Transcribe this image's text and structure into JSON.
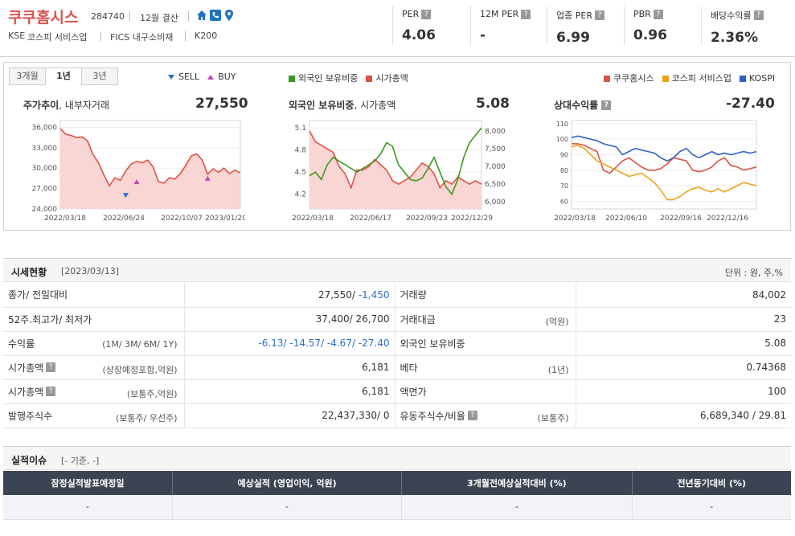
{
  "header": {
    "company_name": "쿠쿠홈시스",
    "code": "284740",
    "fiscal": "12월 결산",
    "icons": [
      "home-icon",
      "phone-icon",
      "location-pin-icon"
    ],
    "market": "KSE",
    "industry": "코스피 서비스업",
    "fics": "FICS 내구소비재",
    "index": "K200",
    "metrics": [
      {
        "label": "PER",
        "value": "4.06"
      },
      {
        "label": "12M PER",
        "value": "-"
      },
      {
        "label": "업종 PER",
        "value": "6.99"
      },
      {
        "label": "PBR",
        "value": "0.96"
      },
      {
        "label": "배당수익률",
        "value": "2.36%"
      }
    ]
  },
  "charts": {
    "tabs": [
      "3개월",
      "1년",
      "3년"
    ],
    "active_tab": "1년",
    "legend1": {
      "sell": "SELL",
      "buy": "BUY"
    },
    "legend2": [
      {
        "name": "외국인 보유비중",
        "color": "#3a9a1f"
      },
      {
        "name": "시가총액",
        "color": "#e05045"
      }
    ],
    "legend3": [
      {
        "name": "쿠쿠홈시스",
        "color": "#e05045"
      },
      {
        "name": "코스피 서비스업",
        "color": "#f0a21a"
      },
      {
        "name": "KOSPI",
        "color": "#2f63c2"
      }
    ],
    "panel1": {
      "title": "주가추이",
      "subtitle": ", 내부자거래",
      "value": "27,550",
      "yticks": [
        "36,000",
        "33,000",
        "30,000",
        "27,000",
        "24,000"
      ],
      "xticks": [
        "2022/03/18",
        "2022/06/24",
        "2022/10/07",
        "2023/01/20"
      ]
    },
    "panel2": {
      "title": "외국인 보유비중",
      "subtitle": ", 시가총액",
      "value": "5.08",
      "yticks_left": [
        "5.1",
        "4.8",
        "4.5",
        "4.2"
      ],
      "yticks_right": [
        "8,000",
        "7,500",
        "7,000",
        "6,500",
        "6,000"
      ],
      "xticks": [
        "2022/03/18",
        "2022/06/17",
        "2022/09/23",
        "2022/12/29"
      ]
    },
    "panel3": {
      "title": "상대수익률",
      "value": "-27.40",
      "yticks": [
        "110",
        "100",
        "90",
        "80",
        "70",
        "60"
      ],
      "xticks": [
        "2022/03/18",
        "2022/06/10",
        "2022/09/16",
        "2022/12/16"
      ]
    }
  },
  "chart_data": [
    {
      "type": "area",
      "title": "주가추이",
      "ylim": [
        24000,
        37000
      ],
      "series": [
        {
          "name": "주가",
          "values": [
            35800,
            35000,
            34800,
            34500,
            34600,
            34000,
            32000,
            30800,
            29000,
            27400,
            28600,
            28200,
            29600,
            30600,
            31000,
            30800,
            31200,
            30200,
            28000,
            27800,
            28600,
            28400,
            29200,
            30400,
            31800,
            32100,
            31200,
            29100,
            29900,
            29400,
            30000,
            29200,
            29700,
            29300
          ]
        }
      ],
      "sell_markers": [
        {
          "index": 12,
          "value": 26000
        }
      ],
      "buy_markers": [
        {
          "index": 14,
          "value": 28000
        },
        {
          "index": 27,
          "value": 28500
        }
      ],
      "xlabels": [
        "2022/03/18",
        "2022/06/24",
        "2022/10/07",
        "2023/01/20"
      ]
    },
    {
      "type": "line",
      "title": "외국인 보유비중",
      "ylim_left": [
        4.0,
        5.2
      ],
      "ylim_right": [
        5800,
        8300
      ],
      "series": [
        {
          "name": "외국인 보유비중",
          "axis": "left",
          "values": [
            4.45,
            4.5,
            4.4,
            4.6,
            4.7,
            4.65,
            4.6,
            4.55,
            4.5,
            4.55,
            4.6,
            4.65,
            4.75,
            4.9,
            4.85,
            4.6,
            4.5,
            4.4,
            4.38,
            4.42,
            4.55,
            4.7,
            4.5,
            4.3,
            4.2,
            4.4,
            4.7,
            4.9,
            5.0,
            5.1
          ]
        },
        {
          "name": "시가총액",
          "axis": "right",
          "values": [
            8000,
            7700,
            7600,
            7500,
            7400,
            7000,
            6800,
            6400,
            6900,
            6900,
            7000,
            7200,
            7050,
            6900,
            6600,
            6500,
            6600,
            6700,
            6900,
            7100,
            7000,
            6800,
            6400,
            6600,
            6500,
            6700,
            6600,
            6500,
            6600,
            6500
          ]
        }
      ],
      "xlabels": [
        "2022/03/18",
        "2022/06/17",
        "2022/09/23",
        "2022/12/29"
      ]
    },
    {
      "type": "line",
      "title": "상대수익률",
      "ylim": [
        55,
        112
      ],
      "series": [
        {
          "name": "쿠쿠홈시스",
          "values": [
            97,
            97,
            96,
            94,
            92,
            80,
            78,
            82,
            86,
            88,
            85,
            82,
            80,
            80,
            81,
            84,
            88,
            87,
            86,
            80,
            79,
            80,
            82,
            86,
            88,
            83,
            82,
            80,
            81,
            82
          ]
        },
        {
          "name": "코스피 서비스업",
          "values": [
            95,
            96,
            94,
            90,
            86,
            84,
            82,
            80,
            78,
            76,
            77,
            78,
            75,
            72,
            67,
            61,
            61,
            63,
            66,
            68,
            69,
            67,
            66,
            68,
            66,
            68,
            70,
            72,
            71,
            70
          ]
        },
        {
          "name": "KOSPI",
          "values": [
            101,
            102,
            101,
            100,
            99,
            97,
            96,
            95,
            90,
            92,
            94,
            93,
            92,
            91,
            88,
            86,
            88,
            92,
            94,
            90,
            88,
            90,
            92,
            90,
            91,
            90,
            91,
            92,
            91,
            92
          ]
        }
      ],
      "xlabels": [
        "2022/03/18",
        "2022/06/10",
        "2022/09/16",
        "2022/12/16"
      ]
    }
  ],
  "market": {
    "title": "시세현황",
    "date": "[2023/03/13]",
    "unit": "단위 : 원, 주,%",
    "rows": [
      {
        "l1": "종가/ 전일대비",
        "l1sub": "",
        "v1a": "27,550/ ",
        "v1b": "-1,450",
        "l2": "거래량",
        "l2sub": "",
        "v2": "84,002"
      },
      {
        "l1": "52주.최고가/ 최저가",
        "l1sub": "",
        "v1a": "37,400/ 26,700",
        "v1b": "",
        "l2": "거래대금",
        "l2sub": "(억원)",
        "v2": "23"
      },
      {
        "l1": "수익률",
        "l1sub": "(1M/ 3M/ 6M/ 1Y)",
        "v1a": "",
        "v1b": "-6.13/ -14.57/ -4.67/ -27.40",
        "l2": "외국인 보유비중",
        "l2sub": "",
        "v2": "5.08"
      },
      {
        "l1": "시가총액",
        "l1sub": "(상장예정포함,억원)",
        "v1a": "6,181",
        "v1b": "",
        "l2": "베타",
        "l2sub": "(1년)",
        "v2": "0.74368"
      },
      {
        "l1": "시가총액",
        "l1sub": "(보통주,억원)",
        "v1a": "6,181",
        "v1b": "",
        "l2": "액면가",
        "l2sub": "",
        "v2": "100"
      },
      {
        "l1": "발행주식수",
        "l1sub": "(보통주/ 우선주)",
        "v1a": "22,437,330/ 0",
        "v1b": "",
        "l2": "유동주식수/비율",
        "l2sub": "(보통주)",
        "v2": "6,689,340 / 29.81"
      }
    ]
  },
  "performance": {
    "title": "실적이슈",
    "subtitle": "[- 기준, -]",
    "headers": [
      "잠정실적발표예정일",
      "예상실적 (영업이익, 억원)",
      "3개월전예상실적대비 (%)",
      "전년동기대비 (%)"
    ],
    "values": [
      "-",
      "-",
      "-",
      "-"
    ]
  }
}
